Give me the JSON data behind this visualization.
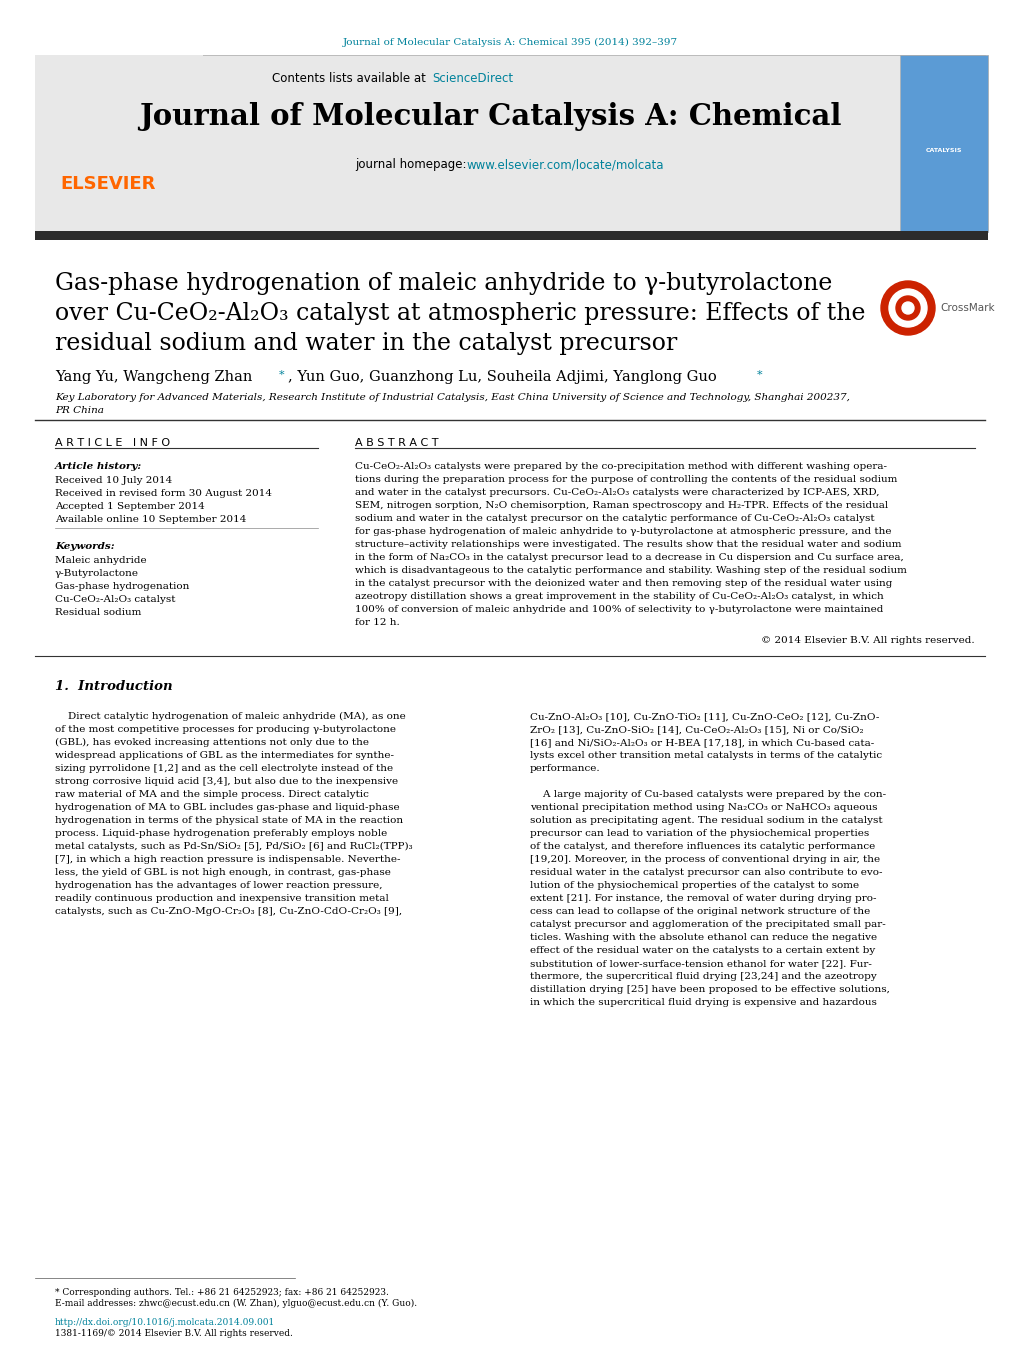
{
  "journal_ref": "Journal of Molecular Catalysis A: Chemical 395 (2014) 392–397",
  "journal_ref_color": "#00829B",
  "journal_name": "Journal of Molecular Catalysis A: Chemical",
  "journal_homepage": "journal homepage: www.elsevier.com/locate/molcata",
  "homepage_url_color": "#00829B",
  "article_title_line1": "Gas-phase hydrogenation of maleic anhydride to γ-butyrolactone",
  "article_title_line2": "over Cu-CeO₂-Al₂O₃ catalyst at atmospheric pressure: Effects of the",
  "article_title_line3": "residual sodium and water in the catalyst precursor",
  "authors_plain": "Yang Yu, Wangcheng Zhan",
  "authors_star1": "*",
  "authors_mid": ", Yun Guo, Guanzhong Lu, Souheila Adjimi, Yanglong Guo",
  "authors_star2": "*",
  "affiliation_line1": "Key Laboratory for Advanced Materials, Research Institute of Industrial Catalysis, East China University of Science and Technology, Shanghai 200237,",
  "affiliation_line2": "PR China",
  "article_info_title": "A R T I C L E   I N F O",
  "abstract_title": "A B S T R A C T",
  "article_history_label": "Article history:",
  "received": "Received 10 July 2014",
  "received_revised": "Received in revised form 30 August 2014",
  "accepted": "Accepted 1 September 2014",
  "available": "Available online 10 September 2014",
  "keywords_label": "Keywords:",
  "keywords": [
    "Maleic anhydride",
    "γ-Butyrolactone",
    "Gas-phase hydrogenation",
    "Cu-CeO₂-Al₂O₃ catalyst",
    "Residual sodium"
  ],
  "abstract_lines": [
    "Cu-CeO₂-Al₂O₃ catalysts were prepared by the co-precipitation method with different washing opera-",
    "tions during the preparation process for the purpose of controlling the contents of the residual sodium",
    "and water in the catalyst precursors. Cu-CeO₂-Al₂O₃ catalysts were characterized by ICP-AES, XRD,",
    "SEM, nitrogen sorption, N₂O chemisorption, Raman spectroscopy and H₂-TPR. Effects of the residual",
    "sodium and water in the catalyst precursor on the catalytic performance of Cu-CeO₂-Al₂O₃ catalyst",
    "for gas-phase hydrogenation of maleic anhydride to γ-butyrolactone at atmospheric pressure, and the",
    "structure–activity relationships were investigated. The results show that the residual water and sodium",
    "in the form of Na₂CO₃ in the catalyst precursor lead to a decrease in Cu dispersion and Cu surface area,",
    "which is disadvantageous to the catalytic performance and stability. Washing step of the residual sodium",
    "in the catalyst precursor with the deionized water and then removing step of the residual water using",
    "azeotropy distillation shows a great improvement in the stability of Cu-CeO₂-Al₂O₃ catalyst, in which",
    "100% of conversion of maleic anhydride and 100% of selectivity to γ-butyrolactone were maintained",
    "for 12 h."
  ],
  "copyright": "© 2014 Elsevier B.V. All rights reserved.",
  "section1_title": "1.  Introduction",
  "intro_left_lines": [
    "    Direct catalytic hydrogenation of maleic anhydride (MA), as one",
    "of the most competitive processes for producing γ-butyrolactone",
    "(GBL), has evoked increasing attentions not only due to the",
    "widespread applications of GBL as the intermediates for synthe-",
    "sizing pyrrolidone [1,2] and as the cell electrolyte instead of the",
    "strong corrosive liquid acid [3,4], but also due to the inexpensive",
    "raw material of MA and the simple process. Direct catalytic",
    "hydrogenation of MA to GBL includes gas-phase and liquid-phase",
    "hydrogenation in terms of the physical state of MA in the reaction",
    "process. Liquid-phase hydrogenation preferably employs noble",
    "metal catalysts, such as Pd-Sn/SiO₂ [5], Pd/SiO₂ [6] and RuCl₂(TPP)₃",
    "[7], in which a high reaction pressure is indispensable. Neverthe-",
    "less, the yield of GBL is not high enough, in contrast, gas-phase",
    "hydrogenation has the advantages of lower reaction pressure,",
    "readily continuous production and inexpensive transition metal",
    "catalysts, such as Cu-ZnO-MgO-Cr₂O₃ [8], Cu-ZnO-CdO-Cr₂O₃ [9],"
  ],
  "intro_right_lines": [
    "Cu-ZnO-Al₂O₃ [10], Cu-ZnO-TiO₂ [11], Cu-ZnO-CeO₂ [12], Cu-ZnO-",
    "ZrO₂ [13], Cu-ZnO-SiO₂ [14], Cu-CeO₂-Al₂O₃ [15], Ni or Co/SiO₂",
    "[16] and Ni/SiO₂-Al₂O₃ or H-BEA [17,18], in which Cu-based cata-",
    "lysts excel other transition metal catalysts in terms of the catalytic",
    "performance.",
    "",
    "    A large majority of Cu-based catalysts were prepared by the con-",
    "ventional precipitation method using Na₂CO₃ or NaHCO₃ aqueous",
    "solution as precipitating agent. The residual sodium in the catalyst",
    "precursor can lead to variation of the physiochemical properties",
    "of the catalyst, and therefore influences its catalytic performance",
    "[19,20]. Moreover, in the process of conventional drying in air, the",
    "residual water in the catalyst precursor can also contribute to evo-",
    "lution of the physiochemical properties of the catalyst to some",
    "extent [21]. For instance, the removal of water during drying pro-",
    "cess can lead to collapse of the original network structure of the",
    "catalyst precursor and agglomeration of the precipitated small par-",
    "ticles. Washing with the absolute ethanol can reduce the negative",
    "effect of the residual water on the catalysts to a certain extent by",
    "substitution of lower-surface-tension ethanol for water [22]. Fur-",
    "thermore, the supercritical fluid drying [23,24] and the azeotropy",
    "distillation drying [25] have been proposed to be effective solutions,",
    "in which the supercritical fluid drying is expensive and hazardous"
  ],
  "footnote_corresponding": "* Corresponding authors. Tel.: +86 21 64252923; fax: +86 21 64252923.",
  "footnote_email": "E-mail addresses: zhwc@ecust.edu.cn (W. Zhan), ylguo@ecust.edu.cn (Y. Guo).",
  "footnote_url": "http://dx.doi.org/10.1016/j.molcata.2014.09.001",
  "footnote_issn": "1381-1169/© 2014 Elsevier B.V. All rights reserved.",
  "bg_color": "#FFFFFF",
  "header_bg_color": "#E8E8E8",
  "link_color": "#00829B",
  "dark_bar_color": "#2C2C2C",
  "elsevier_color": "#FF6600",
  "cover_color": "#5B9BD5"
}
